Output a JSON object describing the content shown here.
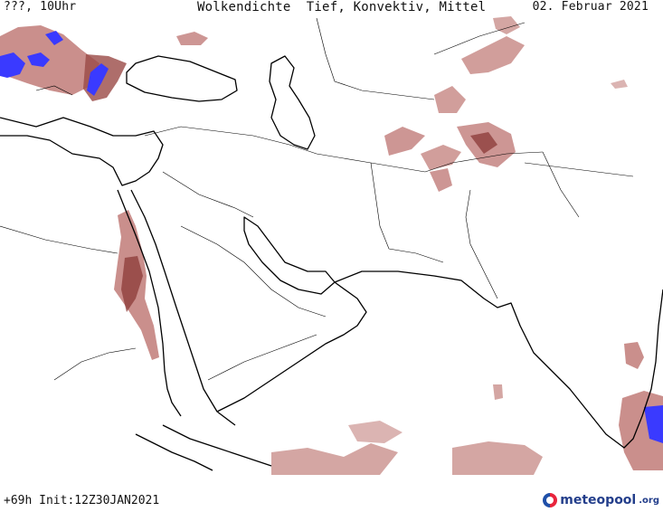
{
  "header": {
    "left": "???, 10Uhr",
    "title": "Wolkendichte  Tief, Konvektiv, Mittel",
    "date": "02. Februar 2021"
  },
  "footer": {
    "run_info": "+69h Init:12Z30JAN2021"
  },
  "logo": {
    "name": "meteopool",
    "tld": ".org"
  },
  "colors": {
    "cloud_low": "#b86a66",
    "cloud_dense": "#8f3f3c",
    "convective": "#3a3aff",
    "coast": "#000000"
  }
}
